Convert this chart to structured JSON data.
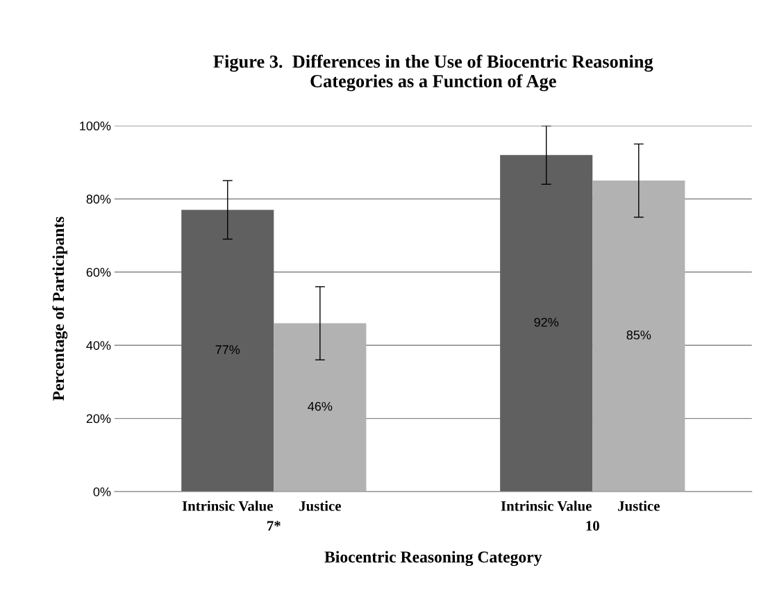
{
  "chart_data": {
    "type": "bar",
    "title": "Figure 3.  Differences in the Use of Biocentric Reasoning\nCategories as a Function of Age",
    "xlabel": "Biocentric Reasoning Category",
    "ylabel": "Percentage of Participants",
    "categories": [
      "7*",
      "10"
    ],
    "series": [
      {
        "name": "Intrinsic Value",
        "color": "#606060",
        "values": [
          77,
          92
        ],
        "errors": [
          8,
          8
        ],
        "value_labels": [
          "77%",
          "92%"
        ]
      },
      {
        "name": "Justice",
        "color": "#b2b2b2",
        "values": [
          46,
          85
        ],
        "errors": [
          10,
          10
        ],
        "value_labels": [
          "46%",
          "85%"
        ]
      }
    ],
    "ylim": [
      0,
      100
    ],
    "yticks": [
      {
        "value": 0,
        "label": "0%"
      },
      {
        "value": 20,
        "label": "20%"
      },
      {
        "value": 40,
        "label": "40%"
      },
      {
        "value": 60,
        "label": "60%"
      },
      {
        "value": 80,
        "label": "80%"
      },
      {
        "value": 100,
        "label": "100%"
      }
    ],
    "grid": "y"
  }
}
